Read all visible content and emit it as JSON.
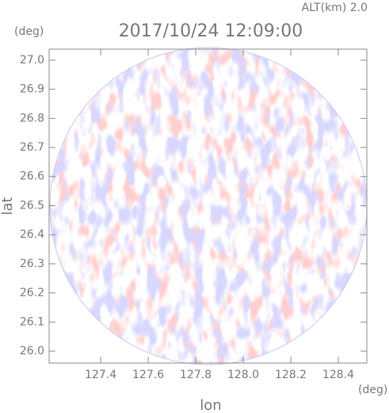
{
  "chart_data": {
    "type": "radar-ppi",
    "title": "2017/10/24 12:09:00",
    "subtitle": "ALT(km) 2.0",
    "x_label": "lon",
    "y_label": "lat",
    "x_unit": "(deg)",
    "y_unit": "(deg)",
    "xlim": [
      127.183,
      128.52
    ],
    "ylim": [
      25.959,
      27.038
    ],
    "xticks": [
      127.4,
      127.6,
      127.8,
      {
        "value": 128.0,
        "label": "128.0"
      },
      128.2,
      128.4
    ],
    "yticks": [
      {
        "value": 26.0,
        "label": "26.0"
      },
      26.1,
      26.2,
      26.3,
      26.4,
      26.5,
      26.6,
      26.7,
      26.8,
      26.9,
      {
        "value": 27.0,
        "label": "27.0"
      }
    ]
  }
}
